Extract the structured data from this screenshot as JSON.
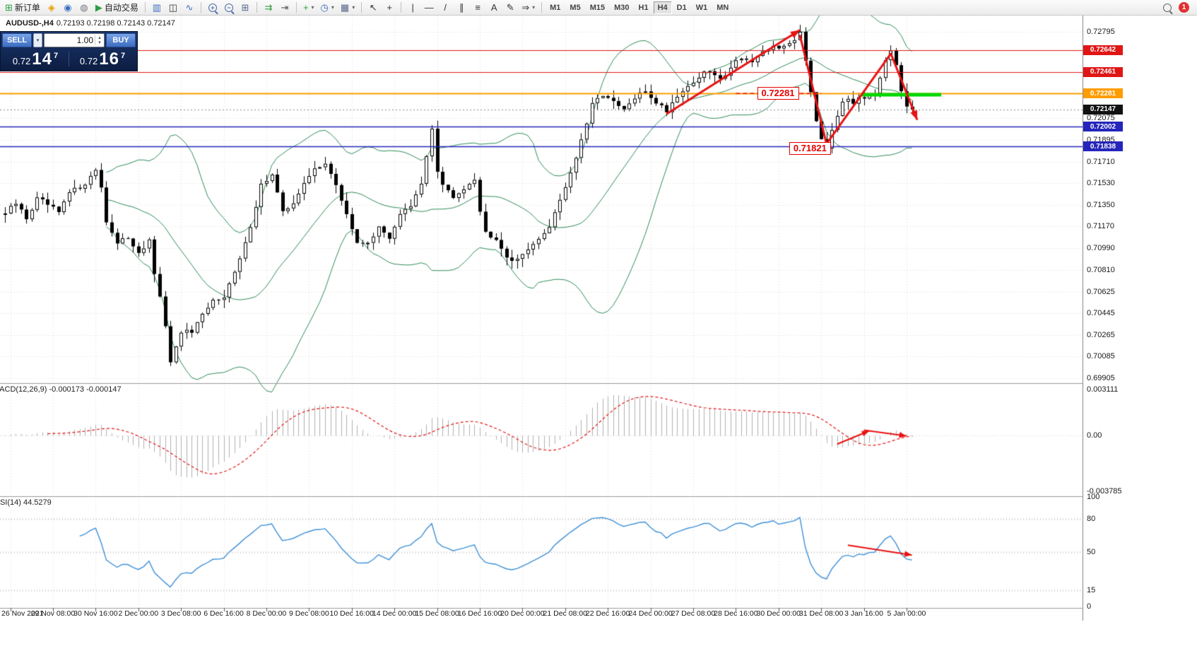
{
  "icons": {
    "caret_small": "▾",
    "caret_up": "▴",
    "caret_down": "▾"
  },
  "toolbar": {
    "items": [
      {
        "kind": "labeled",
        "name": "new-order-button",
        "glyph": "⊞",
        "color": "#2f9e44",
        "label": "新订单"
      },
      {
        "kind": "icon",
        "name": "market-watch-button",
        "glyph": "◈",
        "color": "#e8a000"
      },
      {
        "kind": "icon",
        "name": "navigator-button",
        "glyph": "◉",
        "color": "#3a6ec0"
      },
      {
        "kind": "icon",
        "name": "terminal-button",
        "glyph": "◍",
        "color": "#777777"
      },
      {
        "kind": "labeled",
        "name": "autotrading-button",
        "glyph": "▶",
        "color": "#2f9e44",
        "label": "自动交易"
      },
      {
        "kind": "sep"
      },
      {
        "kind": "icon",
        "name": "bar-chart-button",
        "glyph": "▥",
        "color": "#3a6ec0"
      },
      {
        "kind": "icon",
        "name": "candlestick-chart-button",
        "glyph": "◫",
        "color": "#333333"
      },
      {
        "kind": "icon",
        "name": "line-chart-button",
        "glyph": "∿",
        "color": "#3a6ec0"
      },
      {
        "kind": "sep"
      },
      {
        "kind": "mag",
        "name": "zoom-in-button",
        "sub": "+"
      },
      {
        "kind": "mag",
        "name": "zoom-out-button",
        "sub": "−"
      },
      {
        "kind": "icon",
        "name": "tile-windows-button",
        "glyph": "⊞",
        "color": "#556688"
      },
      {
        "kind": "sep"
      },
      {
        "kind": "icon",
        "name": "auto-scroll-button",
        "glyph": "⇉",
        "color": "#2f9e44"
      },
      {
        "kind": "icon",
        "name": "chart-shift-button",
        "glyph": "⇥",
        "color": "#555555"
      },
      {
        "kind": "sep"
      },
      {
        "kind": "icon-caret",
        "name": "indicators-button",
        "glyph": "+",
        "color": "#2f9e44"
      },
      {
        "kind": "icon-caret",
        "name": "periods-button",
        "glyph": "◷",
        "color": "#3a6ec0"
      },
      {
        "kind": "icon-caret",
        "name": "templates-button",
        "glyph": "▦",
        "color": "#556688"
      },
      {
        "kind": "sep"
      },
      {
        "kind": "icon",
        "name": "cursor-button",
        "glyph": "↖",
        "color": "#333333"
      },
      {
        "kind": "icon",
        "name": "crosshair-button",
        "glyph": "+",
        "color": "#333333"
      },
      {
        "kind": "sep"
      },
      {
        "kind": "icon",
        "name": "vertical-line-button",
        "glyph": "|",
        "color": "#333333"
      },
      {
        "kind": "icon",
        "name": "horizontal-line-button",
        "glyph": "—",
        "color": "#333333"
      },
      {
        "kind": "icon",
        "name": "trendline-button",
        "glyph": "/",
        "color": "#333333"
      },
      {
        "kind": "icon",
        "name": "channel-button",
        "glyph": "∥",
        "color": "#333333"
      },
      {
        "kind": "icon",
        "name": "fibonacci-button",
        "glyph": "≡",
        "color": "#333333"
      },
      {
        "kind": "icon",
        "name": "text-button",
        "glyph": "A",
        "color": "#333333"
      },
      {
        "kind": "icon",
        "name": "text-label-button",
        "glyph": "✎",
        "color": "#333333"
      },
      {
        "kind": "icon-caret",
        "name": "arrows-button",
        "glyph": "⇒",
        "color": "#333333"
      },
      {
        "kind": "sep"
      },
      {
        "kind": "tf-group"
      }
    ],
    "timeframes": [
      "M1",
      "M5",
      "M15",
      "M30",
      "H1",
      "H4",
      "D1",
      "W1",
      "MN"
    ],
    "active_timeframe": "H4",
    "notification_count": "1"
  },
  "chart": {
    "symbol_period": "AUDUSD-,H4",
    "open": "0.72193",
    "high": "0.72198",
    "low": "0.72143",
    "close": "0.72147"
  },
  "trade_panel": {
    "sell_label": "SELL",
    "buy_label": "BUY",
    "volume": "1.00",
    "sell_price": {
      "base": "0.72",
      "pips": "14",
      "pipette": "7"
    },
    "buy_price": {
      "base": "0.72",
      "pips": "16",
      "pipette": "7"
    }
  },
  "indicators": {
    "macd": {
      "title": "MACD(12,26,9)",
      "values_text": "-0.000173 -0.000147"
    },
    "rsi": {
      "title": "RSI(14)",
      "values_text": "44.5279"
    }
  },
  "chart_data": {
    "type": "candlestick",
    "symbol": "AUDUSD-",
    "timeframe": "H4",
    "bars": 171,
    "ylim": [
      0.69875,
      0.72931
    ],
    "price_keypoints": [
      [
        0,
        0.7128
      ],
      [
        2,
        0.7136
      ],
      [
        4,
        0.7124
      ],
      [
        6,
        0.714
      ],
      [
        8,
        0.7135
      ],
      [
        10,
        0.7128
      ],
      [
        12,
        0.7145
      ],
      [
        14,
        0.715
      ],
      [
        16,
        0.7158
      ],
      [
        17,
        0.7165
      ],
      [
        18,
        0.715
      ],
      [
        19,
        0.7122
      ],
      [
        21,
        0.7102
      ],
      [
        23,
        0.7108
      ],
      [
        25,
        0.7096
      ],
      [
        27,
        0.7104
      ],
      [
        28,
        0.7078
      ],
      [
        30,
        0.7035
      ],
      [
        31,
        0.7002
      ],
      [
        32,
        0.7015
      ],
      [
        33,
        0.703
      ],
      [
        35,
        0.7028
      ],
      [
        37,
        0.7042
      ],
      [
        39,
        0.7055
      ],
      [
        41,
        0.706
      ],
      [
        43,
        0.7078
      ],
      [
        45,
        0.7102
      ],
      [
        47,
        0.7135
      ],
      [
        48,
        0.7152
      ],
      [
        50,
        0.716
      ],
      [
        52,
        0.7128
      ],
      [
        54,
        0.7138
      ],
      [
        56,
        0.7152
      ],
      [
        58,
        0.7165
      ],
      [
        60,
        0.7171
      ],
      [
        62,
        0.715
      ],
      [
        64,
        0.7128
      ],
      [
        66,
        0.7102
      ],
      [
        68,
        0.7105
      ],
      [
        70,
        0.7115
      ],
      [
        72,
        0.7108
      ],
      [
        74,
        0.7128
      ],
      [
        76,
        0.7133
      ],
      [
        78,
        0.7152
      ],
      [
        80,
        0.72
      ],
      [
        81,
        0.7162
      ],
      [
        82,
        0.7152
      ],
      [
        84,
        0.714
      ],
      [
        86,
        0.715
      ],
      [
        88,
        0.7158
      ],
      [
        89,
        0.713
      ],
      [
        90,
        0.7112
      ],
      [
        92,
        0.7108
      ],
      [
        94,
        0.7092
      ],
      [
        96,
        0.7088
      ],
      [
        98,
        0.71
      ],
      [
        100,
        0.7105
      ],
      [
        102,
        0.7118
      ],
      [
        104,
        0.714
      ],
      [
        106,
        0.7162
      ],
      [
        108,
        0.7188
      ],
      [
        110,
        0.7218
      ],
      [
        112,
        0.7228
      ],
      [
        114,
        0.722
      ],
      [
        116,
        0.7214
      ],
      [
        118,
        0.7224
      ],
      [
        120,
        0.723
      ],
      [
        122,
        0.7221
      ],
      [
        124,
        0.7214
      ],
      [
        126,
        0.7227
      ],
      [
        128,
        0.7234
      ],
      [
        130,
        0.7242
      ],
      [
        132,
        0.7247
      ],
      [
        134,
        0.7239
      ],
      [
        136,
        0.7251
      ],
      [
        138,
        0.7259
      ],
      [
        140,
        0.7254
      ],
      [
        142,
        0.7261
      ],
      [
        144,
        0.7268
      ],
      [
        146,
        0.7266
      ],
      [
        148,
        0.7274
      ],
      [
        149,
        0.728
      ],
      [
        150,
        0.7257
      ],
      [
        151,
        0.723
      ],
      [
        152,
        0.7207
      ],
      [
        153,
        0.7191
      ],
      [
        154,
        0.7184
      ],
      [
        155,
        0.7199
      ],
      [
        156,
        0.7211
      ],
      [
        157,
        0.7219
      ],
      [
        158,
        0.7224
      ],
      [
        159,
        0.7221
      ],
      [
        160,
        0.7227
      ],
      [
        161,
        0.7225
      ],
      [
        162,
        0.7229
      ],
      [
        163,
        0.7227
      ],
      [
        164,
        0.7239
      ],
      [
        165,
        0.7254
      ],
      [
        166,
        0.7263
      ],
      [
        167,
        0.7251
      ],
      [
        168,
        0.7229
      ],
      [
        169,
        0.7217
      ],
      [
        170,
        0.72147
      ]
    ],
    "bollinger": {
      "period": 20,
      "deviation": 2,
      "color": "#2e8b57"
    },
    "plain_axis_labels": [
      "0.72795",
      "0.72075",
      "0.71895",
      "0.71710",
      "0.71530",
      "0.71350",
      "0.71170",
      "0.70990",
      "0.70810",
      "0.70625",
      "0.70445",
      "0.70265",
      "0.70085",
      "0.69905"
    ],
    "badges": [
      {
        "text": "0.72642",
        "bg": "#e01616"
      },
      {
        "text": "0.72461",
        "bg": "#e01616"
      },
      {
        "text": "0.72281",
        "bg": "#ff9c00"
      },
      {
        "text": "0.72147",
        "bg": "#111111"
      },
      {
        "text": "0.72002",
        "bg": "#2525bb"
      },
      {
        "text": "0.71838",
        "bg": "#2525bb"
      }
    ],
    "levels": [
      {
        "price": 0.72642,
        "color": "#e01616",
        "width": 1
      },
      {
        "price": 0.72461,
        "color": "#e01616",
        "width": 1
      },
      {
        "price": 0.72281,
        "color": "#ff9c00",
        "width": 2
      },
      {
        "price": 0.72147,
        "color": "#888888",
        "width": 1,
        "dash": [
          2,
          3
        ]
      },
      {
        "price": 0.72002,
        "color": "#2525bb",
        "width": 1.5
      },
      {
        "price": 0.71838,
        "color": "#2525bb",
        "width": 1.5
      }
    ],
    "green_segment": {
      "price": 0.7227,
      "from_bar": 160.5,
      "to_bar": 175.5,
      "color": "#00d800"
    },
    "annotations_price": [
      {
        "from": [
          124,
          0.7211
        ],
        "to": [
          149,
          0.7281
        ],
        "head": true
      },
      {
        "from": [
          149,
          0.7277
        ],
        "to": [
          154,
          0.7186
        ],
        "head": false
      },
      {
        "from": [
          154,
          0.7186
        ],
        "to": [
          166,
          0.7261
        ],
        "head": false
      },
      {
        "from": [
          166,
          0.7262
        ],
        "to": [
          171,
          0.7206
        ],
        "head": true
      }
    ],
    "price_labels": [
      {
        "text": "0.72281",
        "bar": 141,
        "price": 0.72281,
        "dash_from": 137,
        "dash_to": 153
      },
      {
        "text": "0.71821",
        "bar": 147,
        "price": 0.71821
      }
    ],
    "time_labels": [
      "26 Nov 2021",
      "29 Nov 08:00",
      "30 Nov 16:00",
      "2 Dec 00:00",
      "3 Dec 08:00",
      "6 Dec 16:00",
      "8 Dec 00:00",
      "9 Dec 08:00",
      "10 Dec 16:00",
      "14 Dec 00:00",
      "15 Dec 08:00",
      "16 Dec 16:00",
      "20 Dec 00:00",
      "21 Dec 08:00",
      "22 Dec 16:00",
      "24 Dec 00:00",
      "27 Dec 08:00",
      "28 Dec 16:00",
      "30 Dec 00:00",
      "31 Dec 08:00",
      "3 Jan 16:00",
      "5 Jan 00:00"
    ],
    "macd": {
      "axis_labels": [
        "0.003111",
        "0.00",
        "-0.003785"
      ],
      "ylim": [
        -0.004,
        0.0034
      ],
      "annotations": [
        {
          "from": [
            156,
            -0.0006
          ],
          "to": [
            162,
            0.0003
          ],
          "head": true
        },
        {
          "from": [
            161,
            0.00035
          ],
          "to": [
            169,
            -5e-05
          ],
          "head": true
        }
      ]
    },
    "rsi": {
      "axis_labels": [
        "100",
        "80",
        "50",
        "15",
        "0"
      ],
      "levels_drawn": [
        80,
        50,
        15
      ],
      "annotations": [
        {
          "from": [
            158,
            56
          ],
          "to": [
            170,
            47
          ],
          "head": true
        }
      ]
    }
  }
}
